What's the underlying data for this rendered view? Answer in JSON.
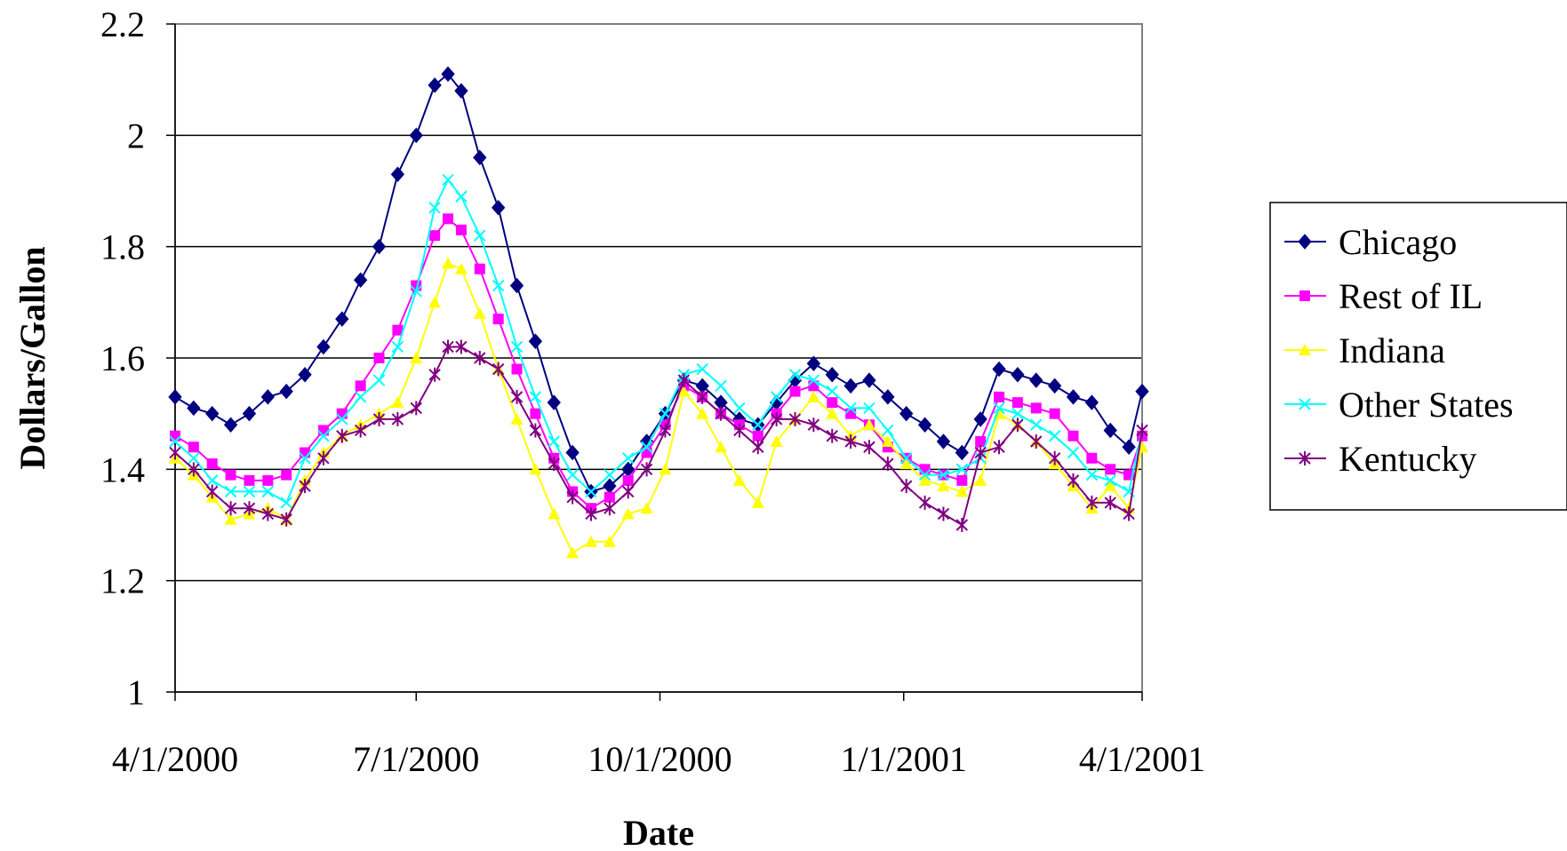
{
  "chart_data": {
    "type": "line",
    "title": "",
    "xlabel": "Date",
    "ylabel": "Dollars/Gallon",
    "ylim": [
      1,
      2.2
    ],
    "yticks": [
      "1",
      "1.2",
      "1.4",
      "1.6",
      "1.8",
      "2",
      "2.2"
    ],
    "xlim": [
      "2000-04-01",
      "2001-04-01"
    ],
    "xticks": [
      "4/1/2000",
      "7/1/2000",
      "10/1/2000",
      "1/1/2001",
      "4/1/2001"
    ],
    "grid": "horizontal",
    "legend_position": "right",
    "series": [
      {
        "name": "Chicago",
        "color": "#000080",
        "marker": "diamond",
        "points": [
          [
            "2000-04-01",
            1.53
          ],
          [
            "2000-04-08",
            1.51
          ],
          [
            "2000-04-15",
            1.5
          ],
          [
            "2000-04-22",
            1.48
          ],
          [
            "2000-04-29",
            1.5
          ],
          [
            "2000-05-06",
            1.53
          ],
          [
            "2000-05-13",
            1.54
          ],
          [
            "2000-05-20",
            1.57
          ],
          [
            "2000-05-27",
            1.62
          ],
          [
            "2000-06-03",
            1.67
          ],
          [
            "2000-06-10",
            1.74
          ],
          [
            "2000-06-17",
            1.8
          ],
          [
            "2000-06-24",
            1.93
          ],
          [
            "2000-07-01",
            2.0
          ],
          [
            "2000-07-08",
            2.09
          ],
          [
            "2000-07-13",
            2.11
          ],
          [
            "2000-07-18",
            2.08
          ],
          [
            "2000-07-25",
            1.96
          ],
          [
            "2000-08-01",
            1.87
          ],
          [
            "2000-08-08",
            1.73
          ],
          [
            "2000-08-15",
            1.63
          ],
          [
            "2000-08-22",
            1.52
          ],
          [
            "2000-08-29",
            1.43
          ],
          [
            "2000-09-05",
            1.36
          ],
          [
            "2000-09-12",
            1.37
          ],
          [
            "2000-09-19",
            1.4
          ],
          [
            "2000-09-26",
            1.45
          ],
          [
            "2000-10-03",
            1.5
          ],
          [
            "2000-10-10",
            1.56
          ],
          [
            "2000-10-17",
            1.55
          ],
          [
            "2000-10-24",
            1.52
          ],
          [
            "2000-10-31",
            1.49
          ],
          [
            "2000-11-07",
            1.48
          ],
          [
            "2000-11-14",
            1.52
          ],
          [
            "2000-11-21",
            1.56
          ],
          [
            "2000-11-28",
            1.59
          ],
          [
            "2000-12-05",
            1.57
          ],
          [
            "2000-12-12",
            1.55
          ],
          [
            "2000-12-19",
            1.56
          ],
          [
            "2000-12-26",
            1.53
          ],
          [
            "2001-01-02",
            1.5
          ],
          [
            "2001-01-09",
            1.48
          ],
          [
            "2001-01-16",
            1.45
          ],
          [
            "2001-01-23",
            1.43
          ],
          [
            "2001-01-30",
            1.49
          ],
          [
            "2001-02-06",
            1.58
          ],
          [
            "2001-02-13",
            1.57
          ],
          [
            "2001-02-20",
            1.56
          ],
          [
            "2001-02-27",
            1.55
          ],
          [
            "2001-03-06",
            1.53
          ],
          [
            "2001-03-13",
            1.52
          ],
          [
            "2001-03-20",
            1.47
          ],
          [
            "2001-03-27",
            1.44
          ],
          [
            "2001-04-01",
            1.54
          ]
        ]
      },
      {
        "name": "Rest of IL",
        "color": "#FF00FF",
        "marker": "square",
        "points": [
          [
            "2000-04-01",
            1.46
          ],
          [
            "2000-04-08",
            1.44
          ],
          [
            "2000-04-15",
            1.41
          ],
          [
            "2000-04-22",
            1.39
          ],
          [
            "2000-04-29",
            1.38
          ],
          [
            "2000-05-06",
            1.38
          ],
          [
            "2000-05-13",
            1.39
          ],
          [
            "2000-05-20",
            1.43
          ],
          [
            "2000-05-27",
            1.47
          ],
          [
            "2000-06-03",
            1.5
          ],
          [
            "2000-06-10",
            1.55
          ],
          [
            "2000-06-17",
            1.6
          ],
          [
            "2000-06-24",
            1.65
          ],
          [
            "2000-07-01",
            1.73
          ],
          [
            "2000-07-08",
            1.82
          ],
          [
            "2000-07-13",
            1.85
          ],
          [
            "2000-07-18",
            1.83
          ],
          [
            "2000-07-25",
            1.76
          ],
          [
            "2000-08-01",
            1.67
          ],
          [
            "2000-08-08",
            1.58
          ],
          [
            "2000-08-15",
            1.5
          ],
          [
            "2000-08-22",
            1.42
          ],
          [
            "2000-08-29",
            1.36
          ],
          [
            "2000-09-05",
            1.33
          ],
          [
            "2000-09-12",
            1.35
          ],
          [
            "2000-09-19",
            1.38
          ],
          [
            "2000-09-26",
            1.43
          ],
          [
            "2000-10-03",
            1.48
          ],
          [
            "2000-10-10",
            1.55
          ],
          [
            "2000-10-17",
            1.53
          ],
          [
            "2000-10-24",
            1.5
          ],
          [
            "2000-10-31",
            1.48
          ],
          [
            "2000-11-07",
            1.46
          ],
          [
            "2000-11-14",
            1.5
          ],
          [
            "2000-11-21",
            1.54
          ],
          [
            "2000-11-28",
            1.55
          ],
          [
            "2000-12-05",
            1.52
          ],
          [
            "2000-12-12",
            1.5
          ],
          [
            "2000-12-19",
            1.48
          ],
          [
            "2000-12-26",
            1.44
          ],
          [
            "2001-01-02",
            1.42
          ],
          [
            "2001-01-09",
            1.4
          ],
          [
            "2001-01-16",
            1.39
          ],
          [
            "2001-01-23",
            1.38
          ],
          [
            "2001-01-30",
            1.45
          ],
          [
            "2001-02-06",
            1.53
          ],
          [
            "2001-02-13",
            1.52
          ],
          [
            "2001-02-20",
            1.51
          ],
          [
            "2001-02-27",
            1.5
          ],
          [
            "2001-03-06",
            1.46
          ],
          [
            "2001-03-13",
            1.42
          ],
          [
            "2001-03-20",
            1.4
          ],
          [
            "2001-03-27",
            1.39
          ],
          [
            "2001-04-01",
            1.46
          ]
        ]
      },
      {
        "name": "Indiana",
        "color": "#FFFF00",
        "marker": "triangle",
        "points": [
          [
            "2000-04-01",
            1.42
          ],
          [
            "2000-04-08",
            1.39
          ],
          [
            "2000-04-15",
            1.35
          ],
          [
            "2000-04-22",
            1.31
          ],
          [
            "2000-04-29",
            1.32
          ],
          [
            "2000-05-06",
            1.33
          ],
          [
            "2000-05-13",
            1.31
          ],
          [
            "2000-05-20",
            1.38
          ],
          [
            "2000-05-27",
            1.43
          ],
          [
            "2000-06-03",
            1.46
          ],
          [
            "2000-06-10",
            1.48
          ],
          [
            "2000-06-17",
            1.5
          ],
          [
            "2000-06-24",
            1.52
          ],
          [
            "2000-07-01",
            1.6
          ],
          [
            "2000-07-08",
            1.7
          ],
          [
            "2000-07-13",
            1.77
          ],
          [
            "2000-07-18",
            1.76
          ],
          [
            "2000-07-25",
            1.68
          ],
          [
            "2000-08-01",
            1.58
          ],
          [
            "2000-08-08",
            1.49
          ],
          [
            "2000-08-15",
            1.4
          ],
          [
            "2000-08-22",
            1.32
          ],
          [
            "2000-08-29",
            1.25
          ],
          [
            "2000-09-05",
            1.27
          ],
          [
            "2000-09-12",
            1.27
          ],
          [
            "2000-09-19",
            1.32
          ],
          [
            "2000-09-26",
            1.33
          ],
          [
            "2000-10-03",
            1.4
          ],
          [
            "2000-10-10",
            1.54
          ],
          [
            "2000-10-17",
            1.5
          ],
          [
            "2000-10-24",
            1.44
          ],
          [
            "2000-10-31",
            1.38
          ],
          [
            "2000-11-07",
            1.34
          ],
          [
            "2000-11-14",
            1.45
          ],
          [
            "2000-11-21",
            1.49
          ],
          [
            "2000-11-28",
            1.53
          ],
          [
            "2000-12-05",
            1.5
          ],
          [
            "2000-12-12",
            1.46
          ],
          [
            "2000-12-19",
            1.48
          ],
          [
            "2000-12-26",
            1.45
          ],
          [
            "2001-01-02",
            1.41
          ],
          [
            "2001-01-09",
            1.38
          ],
          [
            "2001-01-16",
            1.37
          ],
          [
            "2001-01-23",
            1.36
          ],
          [
            "2001-01-30",
            1.38
          ],
          [
            "2001-02-06",
            1.5
          ],
          [
            "2001-02-13",
            1.48
          ],
          [
            "2001-02-20",
            1.45
          ],
          [
            "2001-02-27",
            1.41
          ],
          [
            "2001-03-06",
            1.37
          ],
          [
            "2001-03-13",
            1.33
          ],
          [
            "2001-03-20",
            1.37
          ],
          [
            "2001-03-27",
            1.33
          ],
          [
            "2001-04-01",
            1.44
          ]
        ]
      },
      {
        "name": "Other States",
        "color": "#00FFFF",
        "marker": "x",
        "points": [
          [
            "2000-04-01",
            1.45
          ],
          [
            "2000-04-08",
            1.42
          ],
          [
            "2000-04-15",
            1.38
          ],
          [
            "2000-04-22",
            1.36
          ],
          [
            "2000-04-29",
            1.36
          ],
          [
            "2000-05-06",
            1.36
          ],
          [
            "2000-05-13",
            1.34
          ],
          [
            "2000-05-20",
            1.42
          ],
          [
            "2000-05-27",
            1.46
          ],
          [
            "2000-06-03",
            1.49
          ],
          [
            "2000-06-10",
            1.53
          ],
          [
            "2000-06-17",
            1.56
          ],
          [
            "2000-06-24",
            1.62
          ],
          [
            "2000-07-01",
            1.72
          ],
          [
            "2000-07-08",
            1.87
          ],
          [
            "2000-07-13",
            1.92
          ],
          [
            "2000-07-18",
            1.89
          ],
          [
            "2000-07-25",
            1.82
          ],
          [
            "2000-08-01",
            1.73
          ],
          [
            "2000-08-08",
            1.62
          ],
          [
            "2000-08-15",
            1.53
          ],
          [
            "2000-08-22",
            1.45
          ],
          [
            "2000-08-29",
            1.39
          ],
          [
            "2000-09-05",
            1.36
          ],
          [
            "2000-09-12",
            1.39
          ],
          [
            "2000-09-19",
            1.42
          ],
          [
            "2000-09-26",
            1.44
          ],
          [
            "2000-10-03",
            1.5
          ],
          [
            "2000-10-10",
            1.57
          ],
          [
            "2000-10-17",
            1.58
          ],
          [
            "2000-10-24",
            1.55
          ],
          [
            "2000-10-31",
            1.51
          ],
          [
            "2000-11-07",
            1.48
          ],
          [
            "2000-11-14",
            1.53
          ],
          [
            "2000-11-21",
            1.57
          ],
          [
            "2000-11-28",
            1.56
          ],
          [
            "2000-12-05",
            1.54
          ],
          [
            "2000-12-12",
            1.51
          ],
          [
            "2000-12-19",
            1.51
          ],
          [
            "2000-12-26",
            1.47
          ],
          [
            "2001-01-02",
            1.42
          ],
          [
            "2001-01-09",
            1.39
          ],
          [
            "2001-01-16",
            1.39
          ],
          [
            "2001-01-23",
            1.4
          ],
          [
            "2001-01-30",
            1.42
          ],
          [
            "2001-02-06",
            1.51
          ],
          [
            "2001-02-13",
            1.5
          ],
          [
            "2001-02-20",
            1.48
          ],
          [
            "2001-02-27",
            1.46
          ],
          [
            "2001-03-06",
            1.43
          ],
          [
            "2001-03-13",
            1.39
          ],
          [
            "2001-03-20",
            1.38
          ],
          [
            "2001-03-27",
            1.36
          ],
          [
            "2001-04-01",
            1.47
          ]
        ]
      },
      {
        "name": "Kentucky",
        "color": "#800080",
        "marker": "star",
        "points": [
          [
            "2000-04-01",
            1.43
          ],
          [
            "2000-04-08",
            1.4
          ],
          [
            "2000-04-15",
            1.36
          ],
          [
            "2000-04-22",
            1.33
          ],
          [
            "2000-04-29",
            1.33
          ],
          [
            "2000-05-06",
            1.32
          ],
          [
            "2000-05-13",
            1.31
          ],
          [
            "2000-05-20",
            1.37
          ],
          [
            "2000-05-27",
            1.42
          ],
          [
            "2000-06-03",
            1.46
          ],
          [
            "2000-06-10",
            1.47
          ],
          [
            "2000-06-17",
            1.49
          ],
          [
            "2000-06-24",
            1.49
          ],
          [
            "2000-07-01",
            1.51
          ],
          [
            "2000-07-08",
            1.57
          ],
          [
            "2000-07-13",
            1.62
          ],
          [
            "2000-07-18",
            1.62
          ],
          [
            "2000-07-25",
            1.6
          ],
          [
            "2000-08-01",
            1.58
          ],
          [
            "2000-08-08",
            1.53
          ],
          [
            "2000-08-15",
            1.47
          ],
          [
            "2000-08-22",
            1.41
          ],
          [
            "2000-08-29",
            1.35
          ],
          [
            "2000-09-05",
            1.32
          ],
          [
            "2000-09-12",
            1.33
          ],
          [
            "2000-09-19",
            1.36
          ],
          [
            "2000-09-26",
            1.4
          ],
          [
            "2000-10-03",
            1.47
          ],
          [
            "2000-10-10",
            1.56
          ],
          [
            "2000-10-17",
            1.53
          ],
          [
            "2000-10-24",
            1.5
          ],
          [
            "2000-10-31",
            1.47
          ],
          [
            "2000-11-07",
            1.44
          ],
          [
            "2000-11-14",
            1.49
          ],
          [
            "2000-11-21",
            1.49
          ],
          [
            "2000-11-28",
            1.48
          ],
          [
            "2000-12-05",
            1.46
          ],
          [
            "2000-12-12",
            1.45
          ],
          [
            "2000-12-19",
            1.44
          ],
          [
            "2000-12-26",
            1.41
          ],
          [
            "2001-01-02",
            1.37
          ],
          [
            "2001-01-09",
            1.34
          ],
          [
            "2001-01-16",
            1.32
          ],
          [
            "2001-01-23",
            1.3
          ],
          [
            "2001-01-30",
            1.43
          ],
          [
            "2001-02-06",
            1.44
          ],
          [
            "2001-02-13",
            1.48
          ],
          [
            "2001-02-20",
            1.45
          ],
          [
            "2001-02-27",
            1.42
          ],
          [
            "2001-03-06",
            1.38
          ],
          [
            "2001-03-13",
            1.34
          ],
          [
            "2001-03-20",
            1.34
          ],
          [
            "2001-03-27",
            1.32
          ],
          [
            "2001-04-01",
            1.47
          ]
        ]
      }
    ]
  }
}
